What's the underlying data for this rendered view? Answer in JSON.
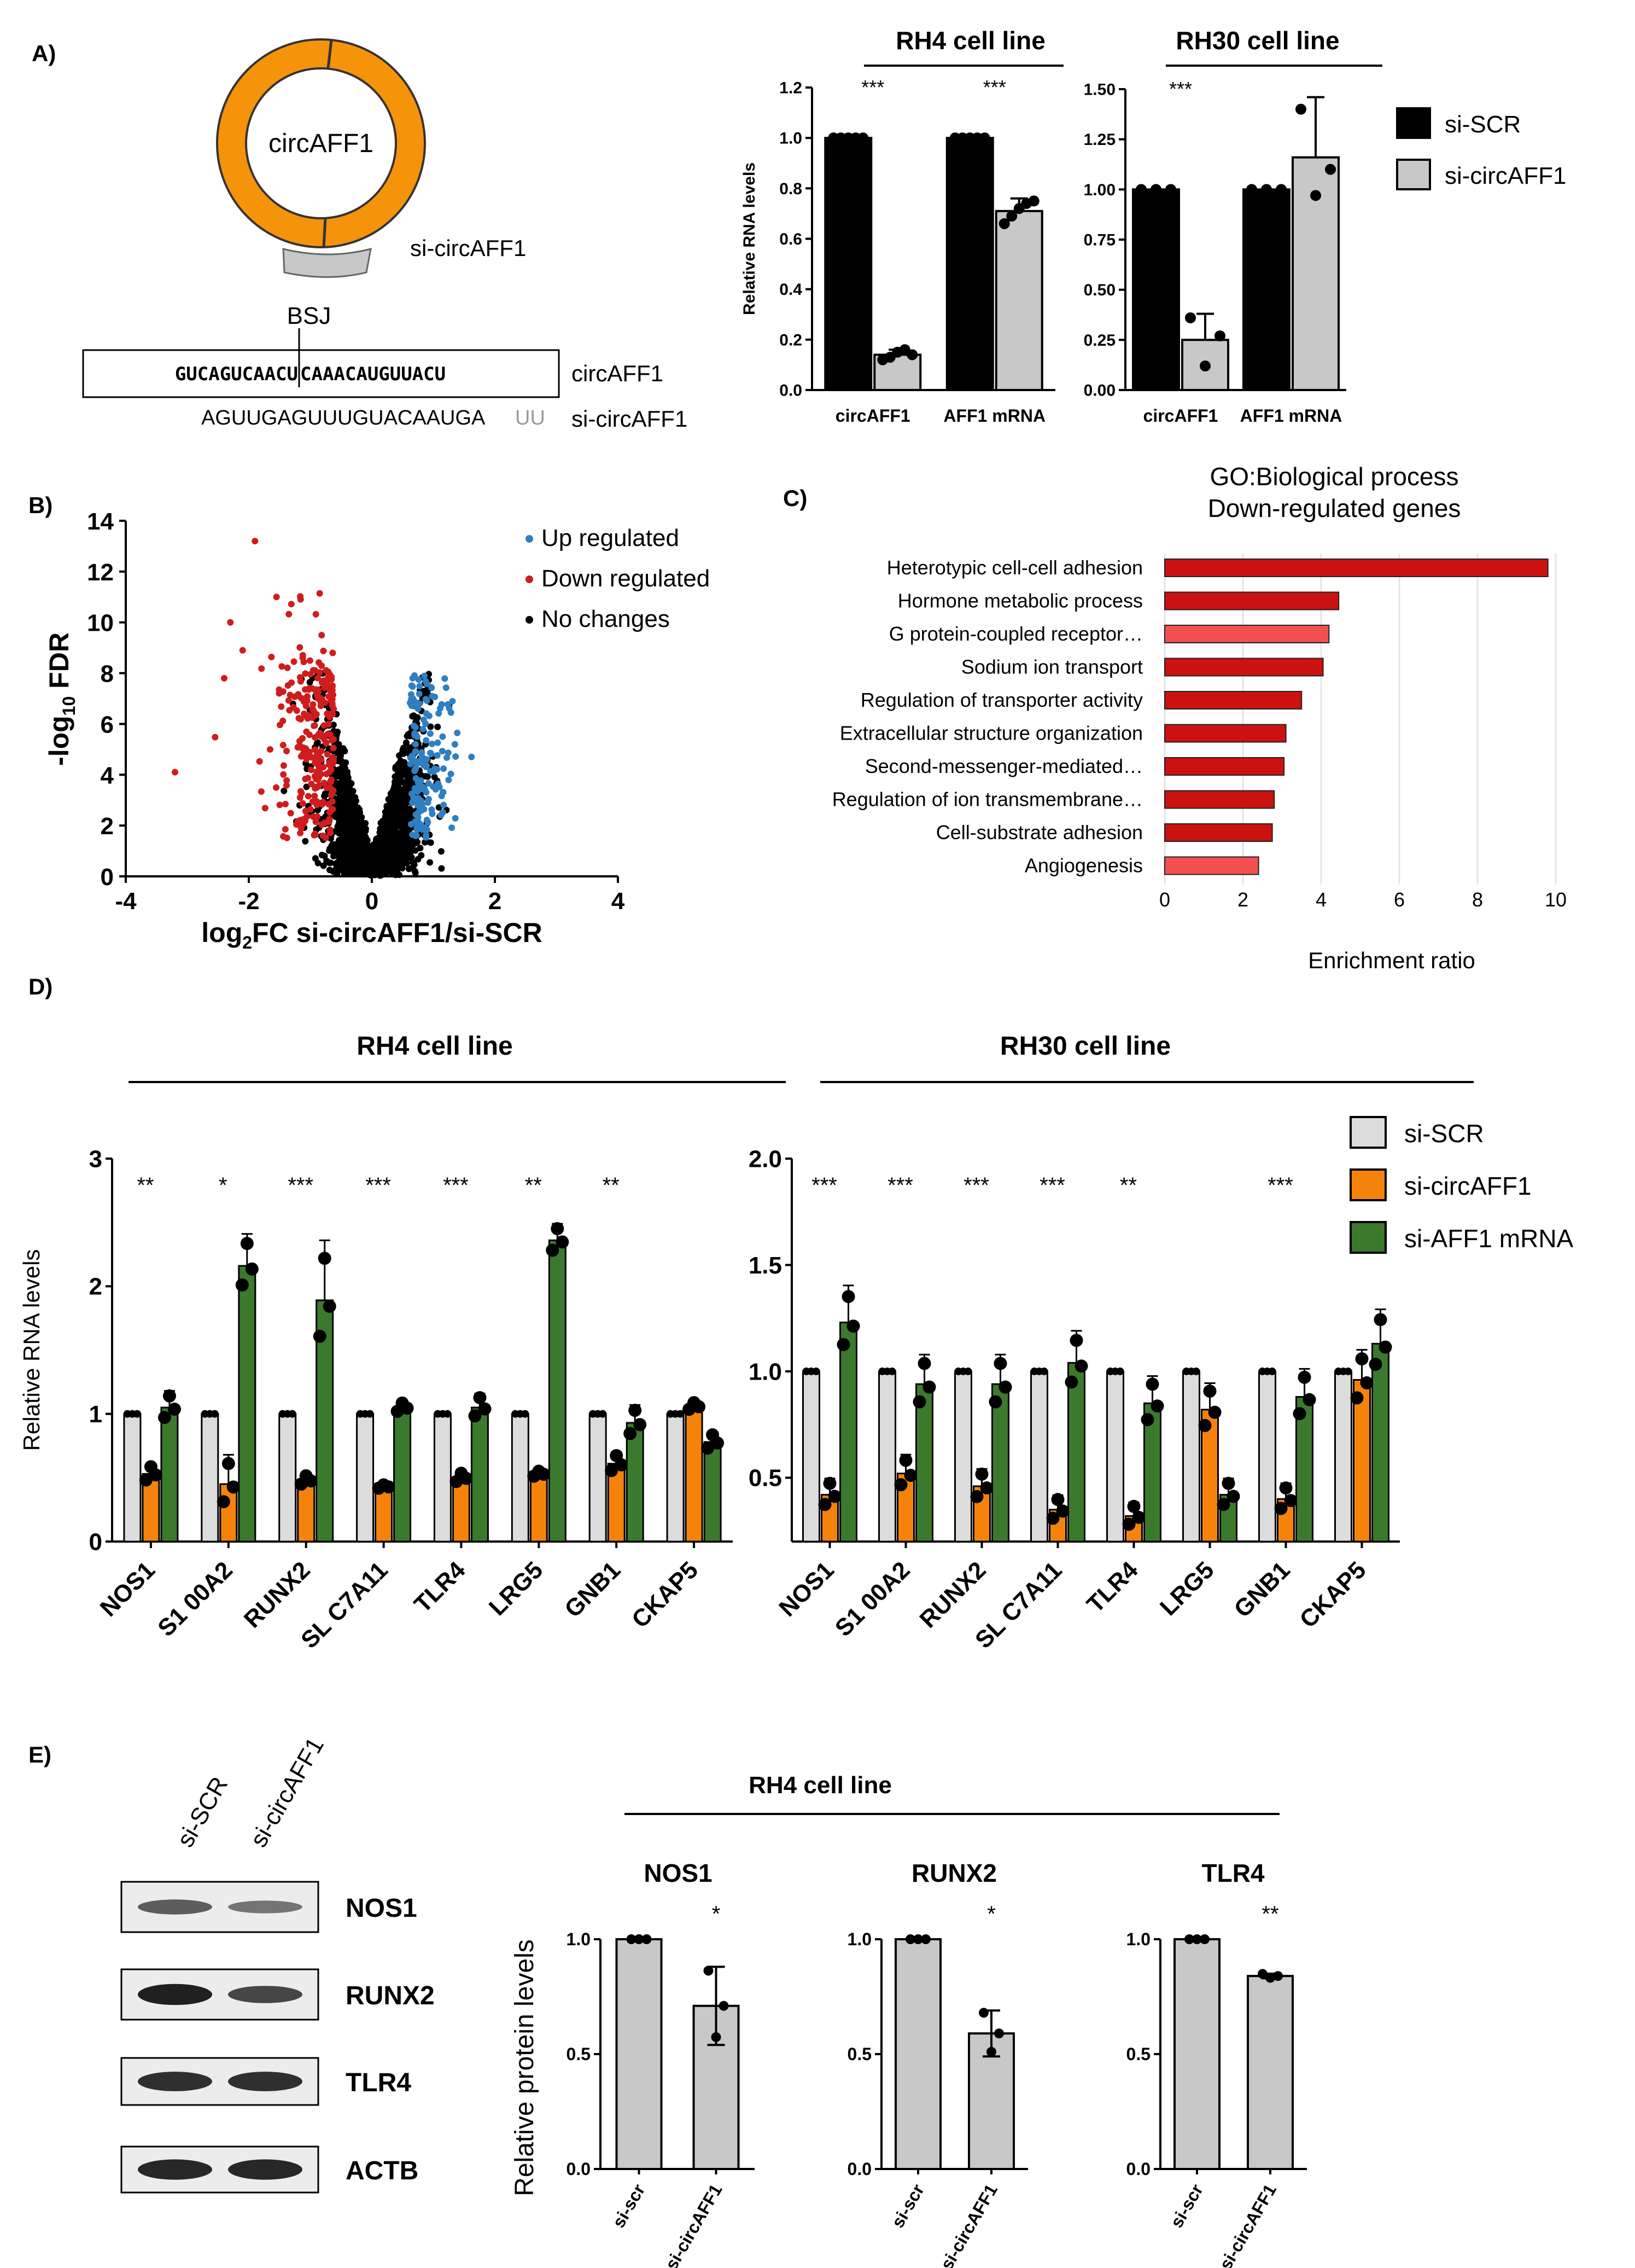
{
  "panel_labels": {
    "A": "A)",
    "B": "B)",
    "C": "C)",
    "D": "D)",
    "E": "E)"
  },
  "panelA": {
    "circle_label": "circAFF1",
    "sirna_label": "si-circAFF1",
    "bsj_label": "BSJ",
    "circ_seq_left": "GUCAGUCAACU",
    "circ_seq_right": "CAAACAUGUUACU",
    "circ_seq_label": "circAFF1",
    "si_seq_main": "AGUUGAGUUUGUACAAUGA",
    "si_seq_tail": "UU",
    "si_seq_label": "si-circAFF1",
    "colors": {
      "ring": "#F5930B",
      "sirna": "#C8C8C8"
    }
  },
  "panelB": {
    "legend": [
      "Up regulated",
      "Down regulated",
      "No changes"
    ],
    "colors": {
      "up": "#2F7FC1",
      "down": "#D01C1C",
      "none": "#000000"
    }
  },
  "panelE_blot": {
    "lane_labels": [
      "si-SCR",
      "si-circAFF1"
    ],
    "bands": [
      "NOS1",
      "RUNX2",
      "TLR4",
      "ACTB"
    ],
    "header": "RH4 cell line"
  },
  "chart_data": [
    {
      "id": "A-RH4",
      "type": "bar",
      "title": "RH4 cell line",
      "ylabel": "Relative RNA levels",
      "categories": [
        "circAFF1",
        "AFF1 mRNA"
      ],
      "ylim": [
        0,
        1.2
      ],
      "yticks": [
        "0.0",
        "0.2",
        "0.4",
        "0.6",
        "0.8",
        "1.0",
        "1.2"
      ],
      "series": [
        {
          "name": "si-SCR",
          "color": "#000000",
          "values": [
            1.0,
            1.0
          ],
          "errors": [
            0,
            0
          ],
          "points": [
            [
              1,
              1,
              1,
              1,
              1
            ],
            [
              1,
              1,
              1,
              1,
              1
            ]
          ]
        },
        {
          "name": "si-circAFF1",
          "color": "#C8C8C8",
          "values": [
            0.14,
            0.71
          ],
          "errors": [
            0.02,
            0.05
          ],
          "points": [
            [
              0.12,
              0.13,
              0.15,
              0.16,
              0.14
            ],
            [
              0.66,
              0.69,
              0.72,
              0.74,
              0.75
            ]
          ]
        }
      ],
      "significance": [
        "***",
        "***"
      ]
    },
    {
      "id": "A-RH30",
      "type": "bar",
      "title": "RH30 cell line",
      "categories": [
        "circAFF1",
        "AFF1 mRNA"
      ],
      "ylim": [
        0,
        1.5
      ],
      "yticks": [
        "0.00",
        "0.25",
        "0.50",
        "0.75",
        "1.00",
        "1.25",
        "1.50"
      ],
      "series": [
        {
          "name": "si-SCR",
          "color": "#000000",
          "values": [
            1.0,
            1.0
          ],
          "errors": [
            0,
            0
          ],
          "points": [
            [
              1,
              1,
              1
            ],
            [
              1,
              1,
              1
            ]
          ]
        },
        {
          "name": "si-circAFF1",
          "color": "#C8C8C8",
          "values": [
            0.25,
            1.16
          ],
          "errors": [
            0.13,
            0.3
          ],
          "points": [
            [
              0.36,
              0.12,
              0.27
            ],
            [
              1.4,
              0.97,
              1.1
            ]
          ]
        }
      ],
      "significance": [
        "***",
        ""
      ],
      "legend": [
        "si-SCR",
        "si-circAFF1"
      ]
    },
    {
      "id": "B",
      "type": "scatter",
      "xlabel_pre": "log",
      "xlabel_sub": "2",
      "xlabel_post": "FC si-circAFF1/si-SCR",
      "ylabel_pre": "-log",
      "ylabel_sub": "10",
      "ylabel_post": " FDR",
      "xlim": [
        -4,
        4
      ],
      "ylim": [
        0,
        14
      ],
      "xticks": [
        "-4",
        "-2",
        "0",
        "2",
        "4"
      ],
      "yticks": [
        "0",
        "2",
        "4",
        "6",
        "8",
        "10",
        "12",
        "14"
      ]
    },
    {
      "id": "C",
      "type": "bar",
      "title": "GO:Biological process",
      "subtitle": "Down-regulated genes",
      "xlabel": "Enrichment ratio",
      "xlim": [
        0,
        10
      ],
      "xticks": [
        "0",
        "2",
        "4",
        "6",
        "8",
        "10"
      ],
      "categories": [
        "Heterotypic cell-cell adhesion",
        "Hormone metabolic process",
        "G protein-coupled receptor…",
        "Sodium ion transport",
        "Regulation of transporter activity",
        "Extracellular structure organization",
        "Second-messenger-mediated…",
        "Regulation of ion transmembrane…",
        "Cell-substrate adhesion",
        "Angiogenesis"
      ],
      "values": [
        9.8,
        4.45,
        4.2,
        4.05,
        3.5,
        3.1,
        3.05,
        2.8,
        2.75,
        2.4
      ],
      "colors": [
        "#CC1111",
        "#CC1111",
        "#F25050",
        "#CC1111",
        "#CC1111",
        "#CC1111",
        "#CC1111",
        "#CC1111",
        "#CC1111",
        "#F25050"
      ]
    },
    {
      "id": "D-RH4",
      "type": "bar",
      "title": "RH4 cell line",
      "ylabel": "Relative RNA levels",
      "ylim": [
        0,
        3
      ],
      "yticks": [
        "0",
        "1",
        "2",
        "3"
      ],
      "categories": [
        "NOS1",
        "S1 00A2",
        "RUNX2",
        "SL C7A11",
        "TLR4",
        "LRG5",
        "GNB1",
        "CKAP5"
      ],
      "series": [
        {
          "name": "si-SCR",
          "color": "#DCDCDC",
          "values": [
            1,
            1,
            1,
            1,
            1,
            1,
            1,
            1
          ],
          "errors": [
            0,
            0,
            0,
            0,
            0,
            0,
            0,
            0
          ]
        },
        {
          "name": "si-circAFF1",
          "color": "#F5830B",
          "values": [
            0.53,
            0.45,
            0.48,
            0.43,
            0.5,
            0.53,
            0.61,
            1.06
          ],
          "errors": [
            0.08,
            0.23,
            0.05,
            0.02,
            0.05,
            0.03,
            0.09,
            0.04
          ]
        },
        {
          "name": "si-AFF1 mRNA",
          "color": "#3B7A2C",
          "values": [
            1.05,
            2.16,
            1.89,
            1.05,
            1.05,
            2.36,
            0.93,
            0.78
          ],
          "errors": [
            0.13,
            0.25,
            0.47,
            0.05,
            0.11,
            0.13,
            0.14,
            0.08
          ]
        }
      ],
      "significance": [
        "**",
        "*",
        "***",
        "***",
        "***",
        "**",
        "**",
        ""
      ]
    },
    {
      "id": "D-RH30",
      "type": "bar",
      "title": "RH30 cell line",
      "ylim": [
        0.2,
        2.0
      ],
      "yticks": [
        "0.5",
        "1.0",
        "1.5",
        "2.0"
      ],
      "categories": [
        "NOS1",
        "S1 00A2",
        "RUNX2",
        "SL C7A11",
        "TLR4",
        "LRG5",
        "GNB1",
        "CKAP5"
      ],
      "series": [
        {
          "name": "si-SCR",
          "color": "#DCDCDC",
          "values": [
            1,
            1,
            1,
            1,
            1,
            1,
            1,
            1
          ],
          "errors": [
            0,
            0,
            0,
            0,
            0,
            0,
            0,
            0
          ]
        },
        {
          "name": "si-circAFF1",
          "color": "#F5830B",
          "values": [
            0.42,
            0.52,
            0.46,
            0.35,
            0.32,
            0.82,
            0.4,
            0.96
          ]
        },
        {
          "name": "si-AFF1 mRNA",
          "color": "#3B7A2C",
          "values": [
            1.23,
            0.94,
            0.94,
            1.04,
            0.85,
            0.42,
            0.88,
            1.13
          ]
        }
      ],
      "significance": [
        "***",
        "***",
        "***",
        "***",
        "**",
        "",
        "***",
        ""
      ],
      "legend": [
        "si-SCR",
        "si-circAFF1",
        "si-AFF1 mRNA"
      ]
    },
    {
      "id": "E-NOS1",
      "type": "bar",
      "title": "NOS1",
      "ylabel": "Relative protein levels",
      "ylim": [
        0,
        1
      ],
      "yticks": [
        "0.0",
        "0.5",
        "1.0"
      ],
      "categories": [
        "si-scr",
        "si-circAFF1"
      ],
      "values": [
        1.0,
        0.71
      ],
      "errors": [
        0,
        0.17
      ],
      "significance": [
        "",
        "*"
      ]
    },
    {
      "id": "E-RUNX2",
      "type": "bar",
      "title": "RUNX2",
      "ylim": [
        0,
        1
      ],
      "yticks": [
        "0.0",
        "0.5",
        "1.0"
      ],
      "categories": [
        "si-scr",
        "si-circAFF1"
      ],
      "values": [
        1.0,
        0.59
      ],
      "errors": [
        0,
        0.1
      ],
      "significance": [
        "",
        "*"
      ]
    },
    {
      "id": "E-TLR4",
      "type": "bar",
      "title": "TLR4",
      "ylim": [
        0,
        1
      ],
      "yticks": [
        "0.0",
        "0.5",
        "1.0"
      ],
      "categories": [
        "si-scr",
        "si-circAFF1"
      ],
      "values": [
        1.0,
        0.84
      ],
      "errors": [
        0,
        0.01
      ],
      "significance": [
        "",
        "**"
      ]
    }
  ]
}
